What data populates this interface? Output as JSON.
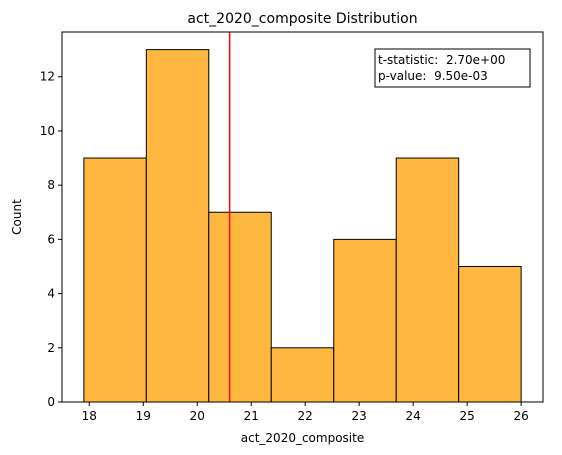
{
  "chart_data": {
    "type": "bar",
    "title": "act_2020_composite Distribution",
    "xlabel": "act_2020_composite",
    "ylabel": "Count",
    "bins": [
      {
        "start": 17.9,
        "end": 19.057,
        "count": 9
      },
      {
        "start": 19.057,
        "end": 20.214,
        "count": 13
      },
      {
        "start": 20.214,
        "end": 21.371,
        "count": 7
      },
      {
        "start": 21.371,
        "end": 22.529,
        "count": 2
      },
      {
        "start": 22.529,
        "end": 23.686,
        "count": 6
      },
      {
        "start": 23.686,
        "end": 24.843,
        "count": 9
      },
      {
        "start": 24.843,
        "end": 26.0,
        "count": 5
      }
    ],
    "xlim": [
      17.495,
      26.405
    ],
    "ylim": [
      0,
      13.65
    ],
    "xticks": [
      18,
      19,
      20,
      21,
      22,
      23,
      24,
      25,
      26
    ],
    "yticks": [
      0,
      2,
      4,
      6,
      8,
      10,
      12
    ],
    "reference_line": {
      "x": 20.6,
      "color": "#ff0000"
    },
    "bar_color": "#ffb83f",
    "edge_color": "#000000",
    "grid": false,
    "annotation": {
      "placement": "top-right",
      "lines": [
        "t-statistic:  2.70e+00",
        "p-value:  9.50e-03"
      ]
    }
  }
}
